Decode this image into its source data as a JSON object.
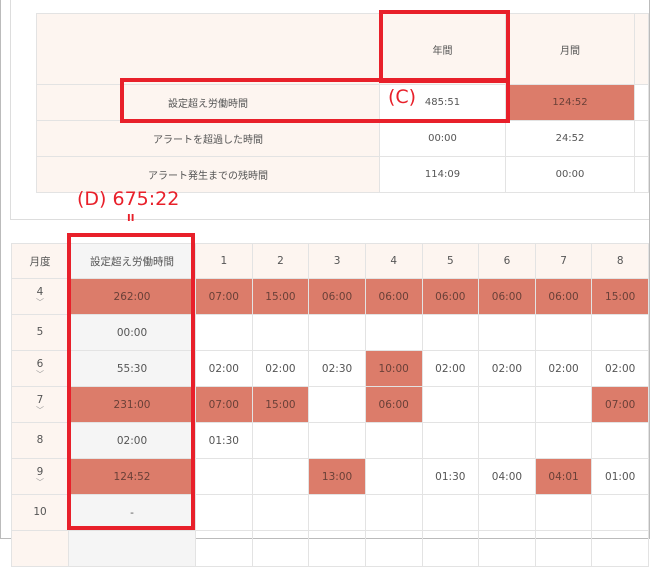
{
  "colors": {
    "highlight": "#dc7c6a",
    "header_bg": "#fdf5f0",
    "annotation": "#e8202a"
  },
  "summary": {
    "headers": [
      "年間",
      "月間"
    ],
    "rows": [
      {
        "label": "設定超え労働時間",
        "annual": "485:51",
        "monthly": "124:52",
        "monthly_highlight": true
      },
      {
        "label": "アラートを超過した時間",
        "annual": "00:00",
        "monthly": "24:52"
      },
      {
        "label": "アラート発生までの残時間",
        "annual": "114:09",
        "monthly": "00:00"
      }
    ]
  },
  "annotations": {
    "c": "(C)",
    "d": "(D) 675:22",
    "equals": "II"
  },
  "monthly_table": {
    "month_header": "月度",
    "total_header": "設定超え労働時間",
    "days": [
      "1",
      "2",
      "3",
      "4",
      "5",
      "6",
      "7",
      "8"
    ],
    "rows": [
      {
        "month": "4",
        "expandable": true,
        "total": "262:00",
        "total_hl": true,
        "cells": [
          "07:00",
          "15:00",
          "06:00",
          "06:00",
          "06:00",
          "06:00",
          "06:00",
          "15:00"
        ],
        "hl": [
          1,
          1,
          1,
          1,
          1,
          1,
          1,
          1
        ]
      },
      {
        "month": "5",
        "total": "00:00",
        "cells": [
          "",
          "",
          "",
          "",
          "",
          "",
          "",
          ""
        ],
        "hl": [
          0,
          0,
          0,
          0,
          0,
          0,
          0,
          0
        ]
      },
      {
        "month": "6",
        "expandable": true,
        "total": "55:30",
        "cells": [
          "02:00",
          "02:00",
          "02:30",
          "10:00",
          "02:00",
          "02:00",
          "02:00",
          "02:00"
        ],
        "hl": [
          0,
          0,
          0,
          1,
          0,
          0,
          0,
          0
        ]
      },
      {
        "month": "7",
        "expandable": true,
        "total": "231:00",
        "total_hl": true,
        "cells": [
          "07:00",
          "15:00",
          "",
          "06:00",
          "",
          "",
          "",
          "07:00"
        ],
        "hl": [
          1,
          1,
          0,
          1,
          0,
          0,
          0,
          1
        ]
      },
      {
        "month": "8",
        "total": "02:00",
        "cells": [
          "01:30",
          "",
          "",
          "",
          "",
          "",
          "",
          ""
        ],
        "hl": [
          0,
          0,
          0,
          0,
          0,
          0,
          0,
          0
        ]
      },
      {
        "month": "9",
        "expandable": true,
        "total": "124:52",
        "total_hl": true,
        "cells": [
          "",
          "",
          "13:00",
          "",
          "01:30",
          "04:00",
          "04:01",
          "01:00"
        ],
        "hl": [
          0,
          0,
          1,
          0,
          0,
          0,
          1,
          0
        ]
      },
      {
        "month": "10",
        "total": "-",
        "cells": [
          "",
          "",
          "",
          "",
          "",
          "",
          "",
          ""
        ],
        "hl": [
          0,
          0,
          0,
          0,
          0,
          0,
          0,
          0
        ]
      }
    ]
  }
}
